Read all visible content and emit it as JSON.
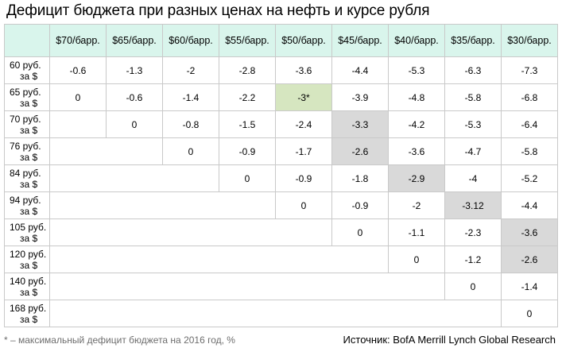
{
  "title": "Дефицит бюджета при разных ценах на нефть и курсе рубля",
  "footnote": "* – максимальный дефицит бюджета на 2016 год, %",
  "source": "Источник: BofA Merrill Lynch Global Research",
  "colors": {
    "header_bg": "#d9f5ec",
    "highlight_gray": "#d9d9d9",
    "highlight_green": "#d6e6c0",
    "border": "#c9c9c9"
  },
  "chart_data": {
    "type": "table",
    "columns": [
      "$70/барр.",
      "$65/барр.",
      "$60/барр.",
      "$55/барр.",
      "$50/барр.",
      "$45/барр.",
      "$40/барр.",
      "$35/барр.",
      "$30/барр."
    ],
    "rows": [
      {
        "label": [
          "60 руб.",
          "за $"
        ],
        "values": [
          "-0.6",
          "-1.3",
          "-2",
          "-2.8",
          "-3.6",
          "-4.4",
          "-5.3",
          "-6.3",
          "-7.3"
        ],
        "highlight": []
      },
      {
        "label": [
          "65 руб.",
          "за $"
        ],
        "values": [
          "0",
          "-0.6",
          "-1.4",
          "-2.2",
          "-3*",
          "-3.9",
          "-4.8",
          "-5.8",
          "-6.8"
        ],
        "highlight": [
          {
            "col": 4,
            "style": "green"
          }
        ]
      },
      {
        "label": [
          "70 руб.",
          "за $"
        ],
        "values": [
          "",
          "0",
          "-0.8",
          "-1.5",
          "-2.4",
          "-3.3",
          "-4.2",
          "-5.3",
          "-6.4"
        ],
        "highlight": [
          {
            "col": 5,
            "style": "gray"
          }
        ]
      },
      {
        "label": [
          "76 руб.",
          "за $"
        ],
        "values": [
          "",
          "",
          "0",
          "-0.9",
          "-1.7",
          "-2.6",
          "-3.6",
          "-4.7",
          "-5.8"
        ],
        "highlight": [
          {
            "col": 5,
            "style": "gray"
          }
        ]
      },
      {
        "label": [
          "84 руб.",
          "за $"
        ],
        "values": [
          "",
          "",
          "",
          "0",
          "-0.9",
          "-1.8",
          "-2.9",
          "-4",
          "-5.2"
        ],
        "highlight": [
          {
            "col": 6,
            "style": "gray"
          }
        ]
      },
      {
        "label": [
          "94 руб.",
          "за $"
        ],
        "values": [
          "",
          "",
          "",
          "",
          "0",
          "-0.9",
          "-2",
          "-3.12",
          "-4.4"
        ],
        "highlight": [
          {
            "col": 7,
            "style": "gray"
          }
        ]
      },
      {
        "label": [
          "105 руб.",
          "за $"
        ],
        "values": [
          "",
          "",
          "",
          "",
          "",
          "0",
          "-1.1",
          "-2.3",
          "-3.6"
        ],
        "highlight": [
          {
            "col": 8,
            "style": "gray"
          }
        ]
      },
      {
        "label": [
          "120 руб.",
          "за $"
        ],
        "values": [
          "",
          "",
          "",
          "",
          "",
          "",
          "0",
          "-1.2",
          "-2.6"
        ],
        "highlight": [
          {
            "col": 8,
            "style": "gray"
          }
        ]
      },
      {
        "label": [
          "140 руб.",
          "за $"
        ],
        "values": [
          "",
          "",
          "",
          "",
          "",
          "",
          "",
          "0",
          "-1.4"
        ],
        "highlight": []
      },
      {
        "label": [
          "168 руб.",
          "за $"
        ],
        "values": [
          "",
          "",
          "",
          "",
          "",
          "",
          "",
          "",
          "0"
        ],
        "highlight": []
      }
    ]
  }
}
